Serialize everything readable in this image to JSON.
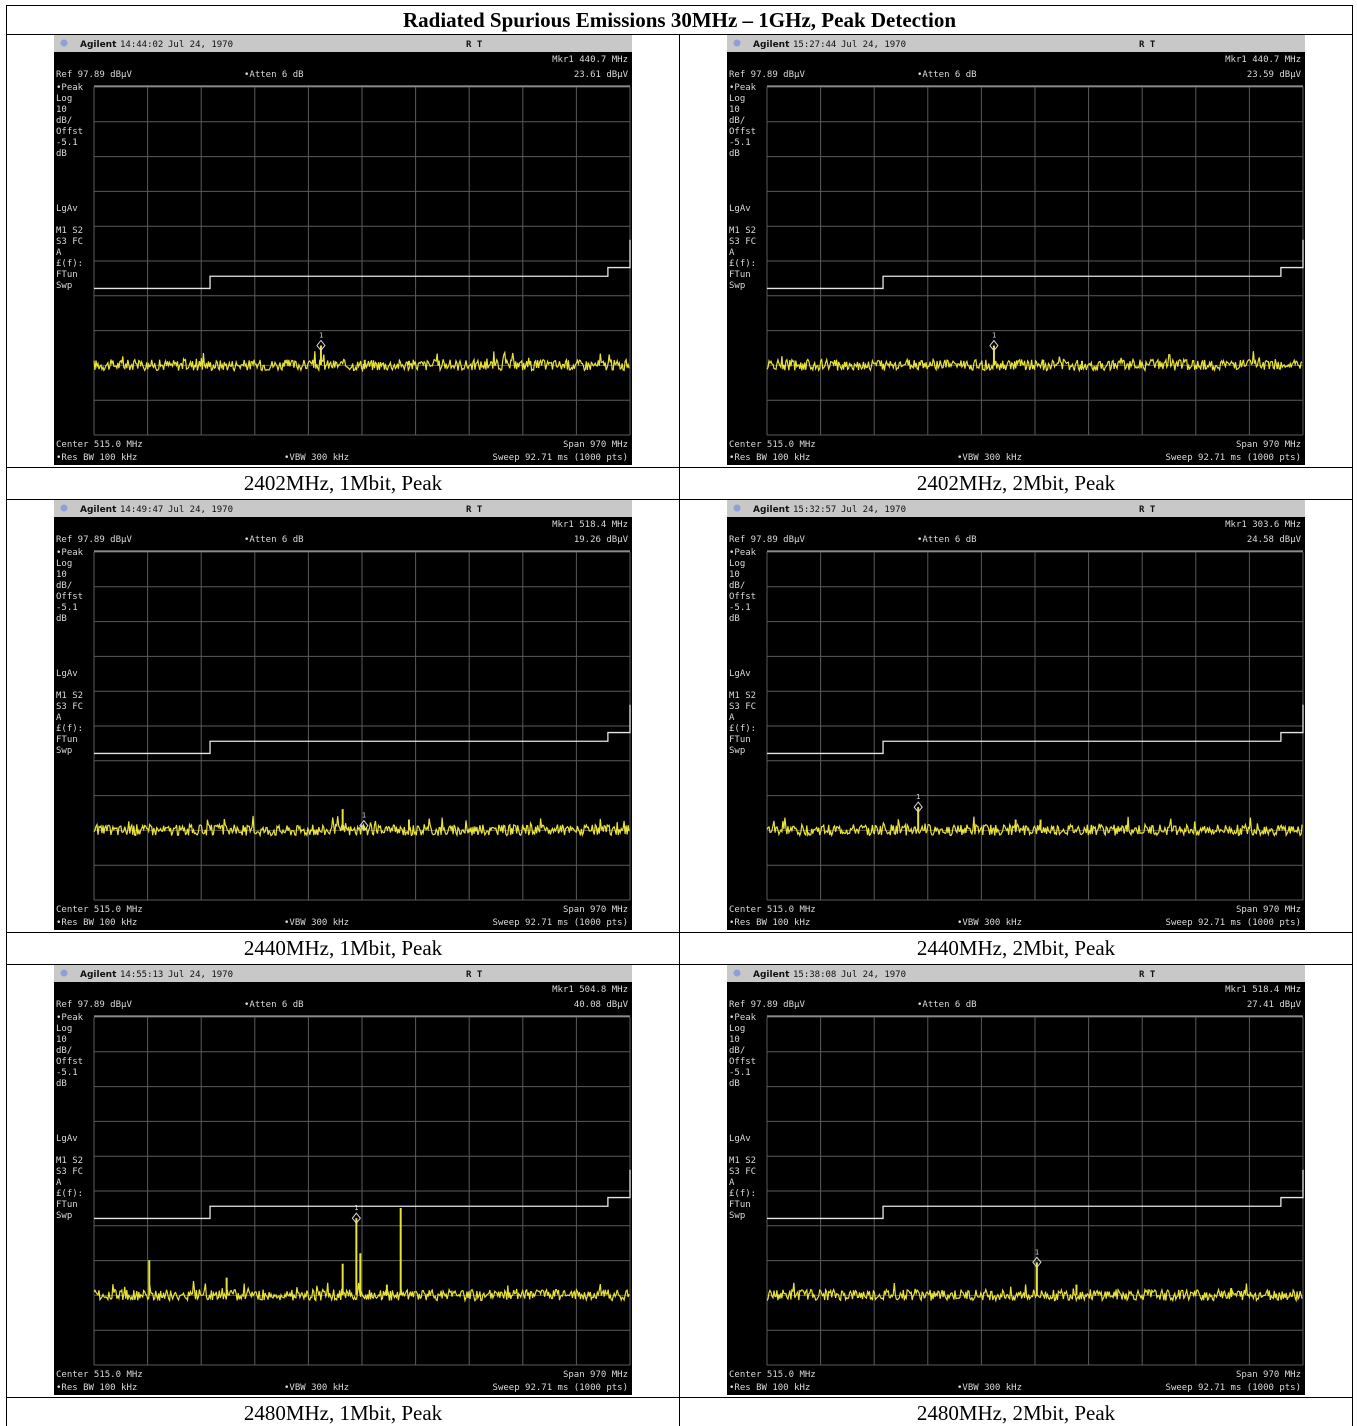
{
  "title": "Radiated Spurious Emissions 30MHz – 1GHz, Peak Detection",
  "common": {
    "brand": "Agilent",
    "date": "Jul 24, 1970",
    "rt": "R   T",
    "ref": "Ref 97.89 dBµV",
    "atten": "•Atten 6 dB",
    "left_labels": [
      "•Peak",
      "Log",
      "10",
      "dB/",
      "Offst",
      "-5.1",
      "dB",
      "",
      "",
      "",
      "",
      "LgAv",
      "",
      "M1  S2",
      "S3  FC",
      "A",
      "£(f):",
      "FTun",
      "Swp"
    ],
    "center": "Center 515.0 MHz",
    "span": "Span 970 MHz",
    "res_bw": "•Res BW 100 kHz",
    "vbw": "•VBW 300 kHz",
    "sweep": "Sweep 92.71 ms (1000 pts)",
    "colors": {
      "screen": "#000000",
      "trace": "#e8e23a",
      "grid": "#5a5a5a",
      "text": "#d9d9d9",
      "header": "#c8c8c8"
    }
  },
  "plots": [
    {
      "time": "14:44:02",
      "mkr_freq": "Mkr1  440.7 MHz",
      "mkr_level": "23.61 dBµV",
      "caption": "2402MHz, 1Mbit, Peak"
    },
    {
      "time": "15:27:44",
      "mkr_freq": "Mkr1  440.7 MHz",
      "mkr_level": "23.59 dBµV",
      "caption": "2402MHz, 2Mbit, Peak"
    },
    {
      "time": "14:49:47",
      "mkr_freq": "Mkr1  518.4 MHz",
      "mkr_level": "19.26 dBµV",
      "caption": "2440MHz, 1Mbit, Peak"
    },
    {
      "time": "15:32:57",
      "mkr_freq": "Mkr1  303.6 MHz",
      "mkr_level": "24.58 dBµV",
      "caption": "2440MHz, 2Mbit, Peak"
    },
    {
      "time": "14:55:13",
      "mkr_freq": "Mkr1  504.8 MHz",
      "mkr_level": "40.08 dBµV",
      "caption": "2480MHz, 1Mbit, Peak"
    },
    {
      "time": "15:38:08",
      "mkr_freq": "Mkr1  518.4 MHz",
      "mkr_level": "27.41 dBµV",
      "caption": "2480MHz, 2Mbit, Peak"
    }
  ],
  "chart_data": [
    {
      "type": "line",
      "x_range_mhz": [
        30,
        1000
      ],
      "y_range_dbuv": [
        -2.11,
        97.89
      ],
      "limit_line": {
        "x_mhz": [
          30,
          100,
          240,
          295,
          960,
          1000
        ],
        "y_dbuv": [
          40,
          40,
          43.5,
          43.5,
          46,
          54
        ]
      },
      "noise_floor_dbuv": 18,
      "peaks": [
        {
          "x_mhz": 440.7,
          "y_dbuv": 23.61,
          "marker": true
        },
        {
          "x_mhz": 520,
          "y_dbuv": 19.5
        },
        {
          "x_mhz": 600,
          "y_dbuv": 19.2
        }
      ]
    },
    {
      "type": "line",
      "x_range_mhz": [
        30,
        1000
      ],
      "y_range_dbuv": [
        -2.11,
        97.89
      ],
      "limit_line": {
        "x_mhz": [
          30,
          100,
          240,
          295,
          960,
          1000
        ],
        "y_dbuv": [
          40,
          40,
          43.5,
          43.5,
          46,
          54
        ]
      },
      "noise_floor_dbuv": 18,
      "peaks": [
        {
          "x_mhz": 440.7,
          "y_dbuv": 23.59,
          "marker": true
        },
        {
          "x_mhz": 530,
          "y_dbuv": 19.5
        },
        {
          "x_mhz": 600,
          "y_dbuv": 19.2
        }
      ]
    },
    {
      "type": "line",
      "x_range_mhz": [
        30,
        1000
      ],
      "y_range_dbuv": [
        -2.11,
        97.89
      ],
      "limit_line": {
        "x_mhz": [
          30,
          100,
          240,
          295,
          960,
          1000
        ],
        "y_dbuv": [
          40,
          40,
          43.5,
          43.5,
          46,
          54
        ]
      },
      "noise_floor_dbuv": 18,
      "peaks": [
        {
          "x_mhz": 518.4,
          "y_dbuv": 19.26,
          "marker": true
        },
        {
          "x_mhz": 480,
          "y_dbuv": 24
        },
        {
          "x_mhz": 600,
          "y_dbuv": 21
        }
      ]
    },
    {
      "type": "line",
      "x_range_mhz": [
        30,
        1000
      ],
      "y_range_dbuv": [
        -2.11,
        97.89
      ],
      "limit_line": {
        "x_mhz": [
          30,
          100,
          240,
          295,
          960,
          1000
        ],
        "y_dbuv": [
          40,
          40,
          43.5,
          43.5,
          46,
          54
        ]
      },
      "noise_floor_dbuv": 18,
      "peaks": [
        {
          "x_mhz": 303.6,
          "y_dbuv": 24.58,
          "marker": true
        },
        {
          "x_mhz": 480,
          "y_dbuv": 21
        },
        {
          "x_mhz": 525,
          "y_dbuv": 21
        }
      ]
    },
    {
      "type": "line",
      "x_range_mhz": [
        30,
        1000
      ],
      "y_range_dbuv": [
        -2.11,
        97.89
      ],
      "limit_line": {
        "x_mhz": [
          30,
          100,
          240,
          295,
          960,
          1000
        ],
        "y_dbuv": [
          40,
          40,
          43.5,
          43.5,
          46,
          54
        ]
      },
      "noise_floor_dbuv": 18,
      "peaks": [
        {
          "x_mhz": 504.8,
          "y_dbuv": 40.08,
          "marker": true
        },
        {
          "x_mhz": 512,
          "y_dbuv": 30
        },
        {
          "x_mhz": 130,
          "y_dbuv": 28
        },
        {
          "x_mhz": 270,
          "y_dbuv": 23
        },
        {
          "x_mhz": 480,
          "y_dbuv": 27
        },
        {
          "x_mhz": 585,
          "y_dbuv": 43
        },
        {
          "x_mhz": 560,
          "y_dbuv": 21
        }
      ]
    },
    {
      "type": "line",
      "x_range_mhz": [
        30,
        1000
      ],
      "y_range_dbuv": [
        -2.11,
        97.89
      ],
      "limit_line": {
        "x_mhz": [
          30,
          100,
          240,
          295,
          960,
          1000
        ],
        "y_dbuv": [
          40,
          40,
          43.5,
          43.5,
          46,
          54
        ]
      },
      "noise_floor_dbuv": 18,
      "peaks": [
        {
          "x_mhz": 518.4,
          "y_dbuv": 27.41,
          "marker": true
        },
        {
          "x_mhz": 590,
          "y_dbuv": 21
        },
        {
          "x_mhz": 870,
          "y_dbuv": 20
        }
      ]
    }
  ]
}
